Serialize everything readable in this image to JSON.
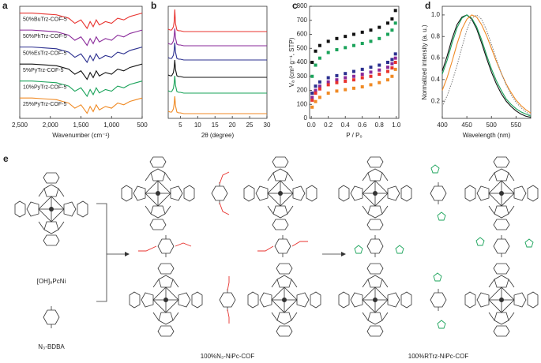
{
  "chart_data": [
    {
      "type": "line",
      "panel": "a",
      "xlabel": "Wavenumber (cm⁻¹)",
      "xlim": [
        2500,
        500
      ],
      "ylim": [
        0.4,
        7.0
      ],
      "xticks": [
        {
          "value": 2500,
          "label": "2,500"
        },
        {
          "value": 2000,
          "label": "2,000"
        },
        {
          "value": 1500,
          "label": "1,500"
        },
        {
          "value": 1000,
          "label": "1,000"
        },
        500
      ],
      "x": [
        2500,
        2300,
        2100,
        1900,
        1800,
        1700,
        1600,
        1500,
        1400,
        1350,
        1300,
        1250,
        1200,
        1100,
        1000,
        900,
        800,
        700,
        600,
        500
      ],
      "series": [
        {
          "name": "50%BuTrz-COF-5",
          "color": "#e8332f",
          "values": [
            6.6,
            6.6,
            6.55,
            6.5,
            6.4,
            6.3,
            6.0,
            6.2,
            5.7,
            6.1,
            5.8,
            6.2,
            5.9,
            6.1,
            6.0,
            6.3,
            6.2,
            6.4,
            6.5,
            6.6
          ]
        },
        {
          "name": "50%PhTrz-COF-5",
          "color": "#8a2a9a",
          "values": [
            5.6,
            5.6,
            5.55,
            5.5,
            5.4,
            5.3,
            5.0,
            5.2,
            4.7,
            5.1,
            4.8,
            5.2,
            4.9,
            5.1,
            5.0,
            5.3,
            5.2,
            5.4,
            5.5,
            5.6
          ]
        },
        {
          "name": "50%EsTrz-COF-5",
          "color": "#2b2f8f",
          "values": [
            4.6,
            4.6,
            4.55,
            4.5,
            4.4,
            4.3,
            4.0,
            4.2,
            3.7,
            4.1,
            3.8,
            4.2,
            3.9,
            4.1,
            4.0,
            4.3,
            4.2,
            4.4,
            4.5,
            4.6
          ]
        },
        {
          "name": "5%PyTrz-COF-5",
          "color": "#111111",
          "values": [
            3.6,
            3.6,
            3.55,
            3.5,
            3.4,
            3.3,
            3.0,
            3.2,
            2.7,
            3.1,
            2.8,
            3.2,
            2.9,
            3.1,
            3.0,
            3.3,
            3.2,
            3.4,
            3.5,
            3.6
          ]
        },
        {
          "name": "10%PyTrz-COF-5",
          "color": "#1aa35a",
          "values": [
            2.6,
            2.6,
            2.55,
            2.5,
            2.4,
            2.3,
            2.0,
            2.2,
            1.7,
            2.1,
            1.8,
            2.2,
            1.9,
            2.1,
            2.0,
            2.3,
            2.2,
            2.4,
            2.5,
            2.6
          ]
        },
        {
          "name": "25%PyTrz-COF-5",
          "color": "#f08a24",
          "values": [
            1.6,
            1.6,
            1.55,
            1.5,
            1.4,
            1.3,
            1.0,
            1.2,
            0.7,
            1.1,
            0.8,
            1.2,
            0.9,
            1.1,
            1.0,
            1.3,
            1.2,
            1.4,
            1.5,
            1.6
          ]
        }
      ]
    },
    {
      "type": "line",
      "panel": "b",
      "xlabel": "2θ (degree)",
      "xlim": [
        1.5,
        30
      ],
      "ylim": [
        0.7,
        7.8
      ],
      "xticks": [
        5,
        10,
        15,
        20,
        25,
        30
      ],
      "x": [
        1.5,
        2,
        2.5,
        3,
        3.2,
        3.4,
        3.6,
        4,
        4.5,
        5,
        6,
        8,
        10,
        15,
        20,
        25,
        30
      ],
      "series": [
        {
          "color": "#e8332f",
          "values": [
            6.35,
            6.3,
            6.3,
            6.5,
            6.8,
            7.6,
            6.7,
            6.3,
            6.25,
            6.25,
            6.2,
            6.2,
            6.2,
            6.2,
            6.2,
            6.2,
            6.2
          ]
        },
        {
          "color": "#8a2a9a",
          "values": [
            5.45,
            5.4,
            5.4,
            5.6,
            5.9,
            6.4,
            5.8,
            5.4,
            5.35,
            5.35,
            5.3,
            5.3,
            5.3,
            5.3,
            5.3,
            5.3,
            5.3
          ]
        },
        {
          "color": "#2b2f8f",
          "values": [
            4.55,
            4.5,
            4.5,
            4.7,
            5.0,
            5.5,
            4.9,
            4.5,
            4.45,
            4.45,
            4.4,
            4.4,
            4.4,
            4.4,
            4.4,
            4.4,
            4.4
          ]
        },
        {
          "color": "#111111",
          "values": [
            3.45,
            3.4,
            3.4,
            3.6,
            3.9,
            4.4,
            3.8,
            3.4,
            3.35,
            3.35,
            3.3,
            3.3,
            3.3,
            3.3,
            3.3,
            3.3,
            3.3
          ]
        },
        {
          "color": "#1aa35a",
          "values": [
            2.45,
            2.4,
            2.4,
            2.6,
            2.9,
            3.4,
            2.8,
            2.4,
            2.35,
            2.35,
            2.3,
            2.3,
            2.3,
            2.3,
            2.3,
            2.3,
            2.3
          ]
        },
        {
          "color": "#f08a24",
          "values": [
            1.15,
            1.1,
            1.1,
            1.3,
            1.6,
            2.1,
            1.5,
            1.1,
            1.05,
            1.05,
            1.0,
            1.0,
            1.0,
            1.0,
            1.0,
            1.0,
            1.0
          ]
        }
      ]
    },
    {
      "type": "scatter",
      "panel": "c",
      "xlabel": "P / P₀",
      "ylabel": "Vₐ (cm³ g⁻¹, STP)",
      "xlim": [
        -0.02,
        1.03
      ],
      "ylim": [
        0,
        800
      ],
      "xticks": [
        {
          "value": 0,
          "label": "0.0"
        },
        0.2,
        0.4,
        0.6,
        0.8,
        {
          "value": 1,
          "label": "1.0"
        }
      ],
      "yticks": [
        0,
        100,
        200,
        300,
        400,
        500,
        600,
        700,
        800
      ],
      "x": [
        0.01,
        0.05,
        0.1,
        0.2,
        0.3,
        0.4,
        0.5,
        0.6,
        0.7,
        0.8,
        0.9,
        0.95,
        0.99
      ],
      "series": [
        {
          "color": "#111111",
          "values": [
            400,
            480,
            520,
            550,
            570,
            585,
            600,
            615,
            630,
            650,
            680,
            710,
            770
          ]
        },
        {
          "color": "#1aa35a",
          "values": [
            300,
            380,
            430,
            470,
            490,
            505,
            520,
            535,
            550,
            570,
            600,
            630,
            680
          ]
        },
        {
          "color": "#2b2f8f",
          "values": [
            180,
            230,
            260,
            290,
            305,
            320,
            335,
            350,
            365,
            380,
            400,
            420,
            460
          ]
        },
        {
          "color": "#8a2a9a",
          "values": [
            150,
            200,
            230,
            260,
            275,
            290,
            300,
            315,
            330,
            345,
            365,
            390,
            430
          ]
        },
        {
          "color": "#e8332f",
          "values": [
            130,
            180,
            210,
            240,
            255,
            265,
            275,
            290,
            300,
            315,
            335,
            360,
            400
          ]
        },
        {
          "color": "#f08a24",
          "values": [
            80,
            120,
            150,
            180,
            195,
            205,
            215,
            225,
            240,
            255,
            275,
            300,
            350
          ]
        }
      ]
    },
    {
      "type": "line",
      "panel": "d",
      "xlabel": "Wavelength (nm)",
      "ylabel": "Normalized intensity (a. u.)",
      "xlim": [
        400,
        580
      ],
      "ylim": [
        0.04,
        1.08
      ],
      "xticks": [
        400,
        450,
        500,
        550
      ],
      "yticks": [
        0.2,
        0.4,
        0.6,
        0.8,
        {
          "value": 1,
          "label": "1.0"
        }
      ],
      "x": [
        400,
        410,
        420,
        430,
        440,
        450,
        460,
        470,
        480,
        490,
        500,
        510,
        520,
        530,
        540,
        550,
        560,
        570,
        580
      ],
      "series": [
        {
          "color": "#111111",
          "values": [
            0.48,
            0.62,
            0.78,
            0.91,
            0.98,
            1.0,
            0.96,
            0.87,
            0.74,
            0.6,
            0.47,
            0.36,
            0.27,
            0.2,
            0.15,
            0.11,
            0.08,
            0.06,
            0.05
          ]
        },
        {
          "color": "#1aa35a",
          "values": [
            0.45,
            0.58,
            0.74,
            0.88,
            0.97,
            1.0,
            0.97,
            0.89,
            0.77,
            0.63,
            0.5,
            0.39,
            0.3,
            0.22,
            0.17,
            0.13,
            0.1,
            0.08,
            0.06
          ]
        },
        {
          "color": "#f08a24",
          "values": [
            0.3,
            0.42,
            0.57,
            0.73,
            0.87,
            0.96,
            1.0,
            0.98,
            0.91,
            0.81,
            0.69,
            0.57,
            0.46,
            0.36,
            0.28,
            0.21,
            0.16,
            0.12,
            0.09
          ]
        },
        {
          "color": "#888888",
          "dash": "dotted",
          "values": [
            0.15,
            0.25,
            0.38,
            0.53,
            0.7,
            0.86,
            0.97,
            1.0,
            0.96,
            0.86,
            0.73,
            0.59,
            0.46,
            0.35,
            0.26,
            0.19,
            0.14,
            0.1,
            0.07
          ]
        }
      ]
    }
  ],
  "scheme": {
    "label": "e",
    "monomers": [
      "[OH]₈PcNi",
      "N₃-BDBA"
    ],
    "products": [
      "100%N₃-NiPc-COF",
      "100%RTrz-NiPc-COF"
    ]
  }
}
